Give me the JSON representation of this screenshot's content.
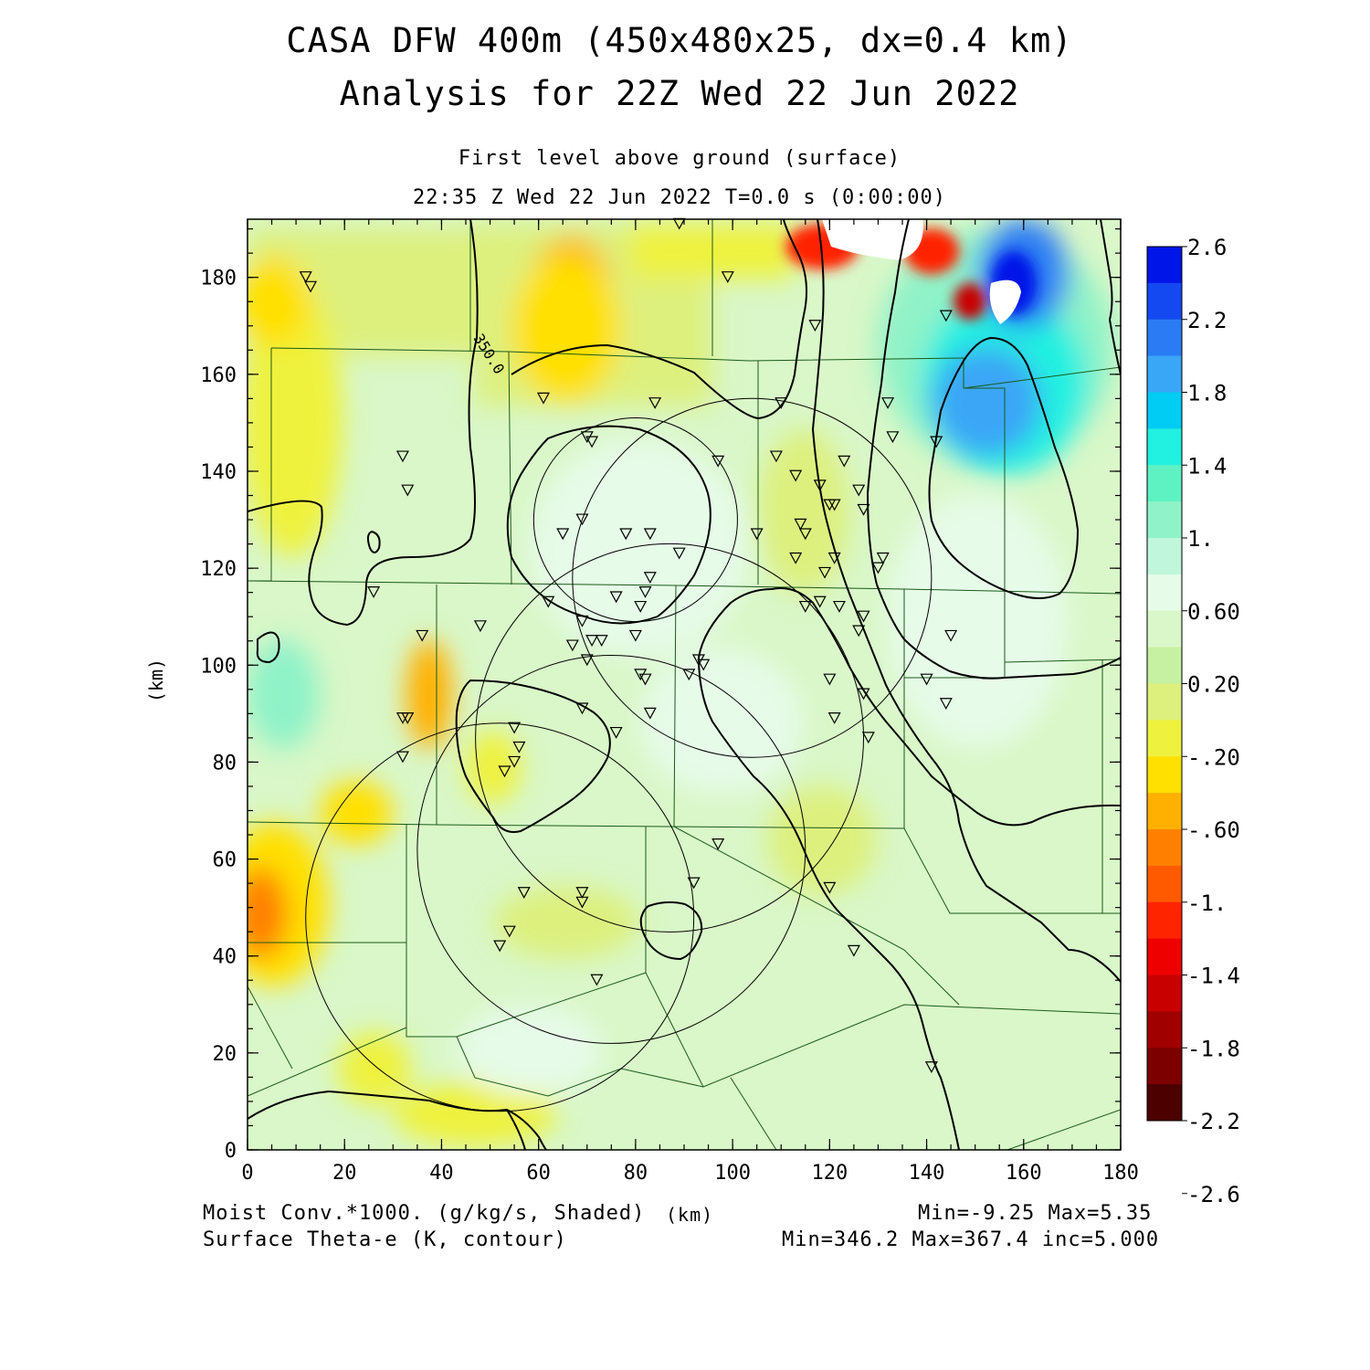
{
  "title": {
    "line1": "CASA DFW 400m (450x480x25, dx=0.4 km)",
    "line2": "Analysis for 22Z Wed 22 Jun 2022"
  },
  "subtitle": {
    "level": "First level above ground (surface)",
    "time": "22:35 Z Wed 22 Jun 2022   T=0.0 s (0:00:00)"
  },
  "axes": {
    "x": {
      "label": "(km)",
      "min": 0,
      "max": 180,
      "ticks": [
        "0",
        "20",
        "40",
        "60",
        "80",
        "100",
        "120",
        "140",
        "160",
        "180"
      ]
    },
    "y": {
      "label": "(km)",
      "min": 0,
      "max": 192,
      "ticks": [
        "0",
        "20",
        "40",
        "60",
        "80",
        "100",
        "120",
        "140",
        "160",
        "180"
      ]
    }
  },
  "contour_label": "350.0",
  "colorbar": {
    "labels": [
      "2.6",
      "2.2",
      "1.8",
      "1.4",
      "1.",
      "0.60",
      "0.20",
      "-.20",
      "-.60",
      "-1.",
      "-1.4",
      "-1.8",
      "-2.2",
      "-2.6"
    ],
    "colors": [
      "#0015e8",
      "#1448f0",
      "#2a7bf4",
      "#3aa6f6",
      "#00ccf4",
      "#22f0e0",
      "#5ef2c2",
      "#90f2c8",
      "#bff6dc",
      "#e6fbe8",
      "#d9f7c8",
      "#c6f0a2",
      "#ddf07e",
      "#eef23e",
      "#ffe000",
      "#ffb000",
      "#ff8000",
      "#ff5a00",
      "#ff2400",
      "#ee0000",
      "#c80000",
      "#a00000",
      "#7c0000",
      "#4c0000"
    ]
  },
  "footer": {
    "left1": "Moist Conv.*1000. (g/kg/s, Shaded)",
    "center": "(km)",
    "right1": "Min=-9.25 Max=5.35",
    "left2": "Surface Theta-e (K, contour)",
    "right2": "Min=346.2 Max=367.4 inc=5.000"
  },
  "radars": [
    {
      "x": 52,
      "y": 48,
      "r_km": 40
    },
    {
      "x": 75,
      "y": 62,
      "r_km": 40
    },
    {
      "x": 87,
      "y": 85,
      "r_km": 40
    },
    {
      "x": 104,
      "y": 118,
      "r_km": 37
    },
    {
      "x": 80,
      "y": 130,
      "r_km": 21
    }
  ],
  "stations": [
    [
      12,
      180
    ],
    [
      13,
      178
    ],
    [
      32,
      143
    ],
    [
      33,
      136
    ],
    [
      61,
      155
    ],
    [
      70,
      147
    ],
    [
      71,
      146
    ],
    [
      84,
      154
    ],
    [
      97,
      142
    ],
    [
      110,
      154
    ],
    [
      99,
      180
    ],
    [
      89,
      191
    ],
    [
      117,
      170
    ],
    [
      144,
      172
    ],
    [
      132,
      154
    ],
    [
      133,
      147
    ],
    [
      142,
      146
    ],
    [
      109,
      143
    ],
    [
      113,
      139
    ],
    [
      118,
      137
    ],
    [
      123,
      142
    ],
    [
      126,
      136
    ],
    [
      127,
      132
    ],
    [
      120,
      133
    ],
    [
      121,
      133
    ],
    [
      114,
      129
    ],
    [
      115,
      127
    ],
    [
      105,
      127
    ],
    [
      69,
      130
    ],
    [
      65,
      127
    ],
    [
      78,
      127
    ],
    [
      83,
      127
    ],
    [
      89,
      123
    ],
    [
      83,
      118
    ],
    [
      82,
      115
    ],
    [
      62,
      113
    ],
    [
      69,
      109
    ],
    [
      67,
      104
    ],
    [
      71,
      105
    ],
    [
      73,
      105
    ],
    [
      76,
      114
    ],
    [
      81,
      112
    ],
    [
      80,
      106
    ],
    [
      70,
      101
    ],
    [
      48,
      108
    ],
    [
      36,
      106
    ],
    [
      26,
      115
    ],
    [
      93,
      101
    ],
    [
      94,
      100
    ],
    [
      91,
      98
    ],
    [
      81,
      98
    ],
    [
      82,
      97
    ],
    [
      83,
      90
    ],
    [
      76,
      86
    ],
    [
      69,
      91
    ],
    [
      55,
      87
    ],
    [
      56,
      83
    ],
    [
      55,
      80
    ],
    [
      53,
      78
    ],
    [
      32,
      89
    ],
    [
      33,
      89
    ],
    [
      32,
      81
    ],
    [
      121,
      122
    ],
    [
      119,
      119
    ],
    [
      122,
      112
    ],
    [
      118,
      113
    ],
    [
      113,
      122
    ],
    [
      115,
      112
    ],
    [
      127,
      110
    ],
    [
      126,
      107
    ],
    [
      120,
      97
    ],
    [
      127,
      94
    ],
    [
      121,
      89
    ],
    [
      128,
      85
    ],
    [
      131,
      122
    ],
    [
      130,
      120
    ],
    [
      145,
      106
    ],
    [
      140,
      97
    ],
    [
      144,
      92
    ],
    [
      97,
      63
    ],
    [
      92,
      55
    ],
    [
      57,
      53
    ],
    [
      69,
      53
    ],
    [
      69,
      51
    ],
    [
      54,
      45
    ],
    [
      52,
      42
    ],
    [
      72,
      35
    ],
    [
      120,
      54
    ],
    [
      125,
      41
    ],
    [
      141,
      17
    ]
  ]
}
